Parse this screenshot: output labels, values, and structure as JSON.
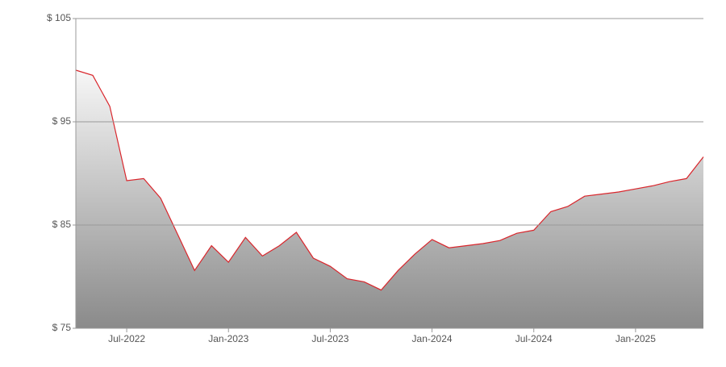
{
  "chart_data": {
    "type": "area",
    "x": [
      "2022-04",
      "2022-05",
      "2022-06",
      "2022-07",
      "2022-08",
      "2022-09",
      "2022-10",
      "2022-11",
      "2022-12",
      "2023-01",
      "2023-02",
      "2023-03",
      "2023-04",
      "2023-05",
      "2023-06",
      "2023-07",
      "2023-08",
      "2023-09",
      "2023-10",
      "2023-11",
      "2023-12",
      "2024-01",
      "2024-02",
      "2024-03",
      "2024-04",
      "2024-05",
      "2024-06",
      "2024-07",
      "2024-08",
      "2024-09",
      "2024-10",
      "2024-11",
      "2024-12",
      "2025-01",
      "2025-02",
      "2025-03",
      "2025-04",
      "2025-05"
    ],
    "values": [
      100,
      99.5,
      96.5,
      89.3,
      89.5,
      87.6,
      84.1,
      80.6,
      83,
      81.4,
      83.8,
      82,
      83,
      84.3,
      81.8,
      81,
      79.8,
      79.5,
      78.7,
      80.6,
      82.2,
      83.6,
      82.8,
      83,
      83.2,
      83.5,
      84.2,
      84.5,
      86.3,
      86.8,
      87.8,
      88,
      88.2,
      88.5,
      88.8,
      89.2,
      89.5,
      91.6
    ],
    "color": "#d9262c",
    "ylim": [
      75,
      105
    ],
    "yticks": [
      {
        "value": 75,
        "label": "$ 75"
      },
      {
        "value": 85,
        "label": "$ 85"
      },
      {
        "value": 95,
        "label": "$ 95"
      },
      {
        "value": 105,
        "label": "$ 105"
      }
    ],
    "xticks": [
      {
        "value": "2022-07",
        "label": "Jul-2022"
      },
      {
        "value": "2023-01",
        "label": "Jan-2023"
      },
      {
        "value": "2023-07",
        "label": "Jul-2023"
      },
      {
        "value": "2024-01",
        "label": "Jan-2024"
      },
      {
        "value": "2024-07",
        "label": "Jul-2024"
      },
      {
        "value": "2025-01",
        "label": "Jan-2025"
      }
    ],
    "grid": true
  }
}
